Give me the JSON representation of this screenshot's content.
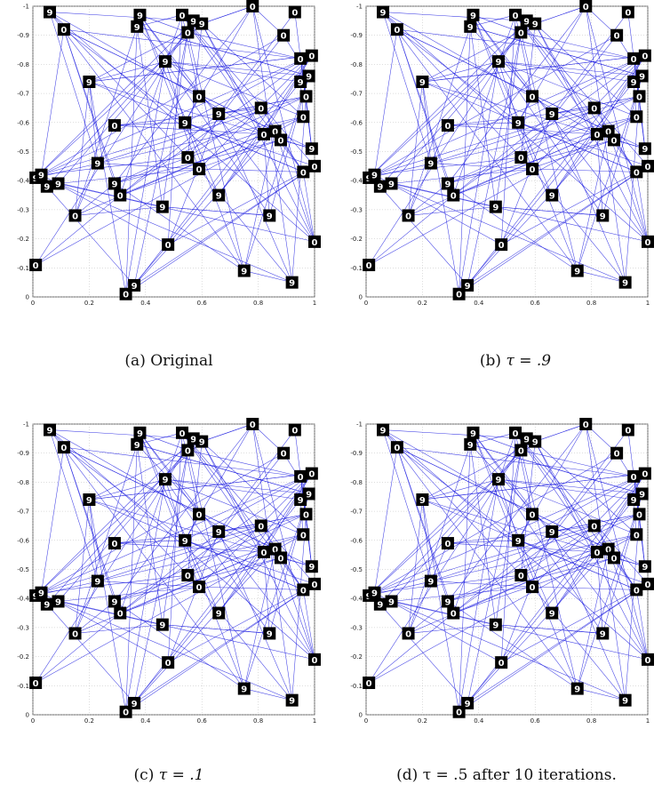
{
  "captions": [
    {
      "label": "(a)",
      "text": "Original"
    },
    {
      "label": "(b)",
      "text": "τ = .9"
    },
    {
      "label": "(c)",
      "text": "τ = .1"
    },
    {
      "label": "(d)",
      "text": "τ = .5 after 10 iterations."
    }
  ],
  "chart_data": [
    {
      "type": "scatter",
      "title": "",
      "xlim": [
        0,
        1
      ],
      "ylim": [
        -1,
        0
      ],
      "xticks": [
        "0",
        "0.2",
        "0.4",
        "0.6",
        "0.8",
        "1"
      ],
      "yticks": [
        "-1",
        "-0.9",
        "-0.8",
        "-0.7",
        "-0.6",
        "-0.5",
        "-0.4",
        "-0.3",
        "-0.2",
        "-0.1",
        "0"
      ],
      "grid": true,
      "edge_color": "#2020e0",
      "points": [
        {
          "x": 0.06,
          "y": -0.98,
          "digit": "9"
        },
        {
          "x": 0.11,
          "y": -0.92,
          "digit": "0"
        },
        {
          "x": 0.38,
          "y": -0.97,
          "digit": "9"
        },
        {
          "x": 0.37,
          "y": -0.93,
          "digit": "9"
        },
        {
          "x": 0.53,
          "y": -0.97,
          "digit": "0"
        },
        {
          "x": 0.57,
          "y": -0.95,
          "digit": "9"
        },
        {
          "x": 0.6,
          "y": -0.94,
          "digit": "9"
        },
        {
          "x": 0.55,
          "y": -0.91,
          "digit": "0"
        },
        {
          "x": 0.78,
          "y": -1.0,
          "digit": "0"
        },
        {
          "x": 0.93,
          "y": -0.98,
          "digit": "0"
        },
        {
          "x": 0.89,
          "y": -0.9,
          "digit": "0"
        },
        {
          "x": 0.47,
          "y": -0.81,
          "digit": "9"
        },
        {
          "x": 0.95,
          "y": -0.82,
          "digit": "0"
        },
        {
          "x": 0.99,
          "y": -0.83,
          "digit": "0"
        },
        {
          "x": 0.98,
          "y": -0.76,
          "digit": "9"
        },
        {
          "x": 0.95,
          "y": -0.74,
          "digit": "9"
        },
        {
          "x": 0.97,
          "y": -0.69,
          "digit": "0"
        },
        {
          "x": 0.2,
          "y": -0.74,
          "digit": "9"
        },
        {
          "x": 0.59,
          "y": -0.69,
          "digit": "0"
        },
        {
          "x": 0.81,
          "y": -0.65,
          "digit": "0"
        },
        {
          "x": 0.66,
          "y": -0.63,
          "digit": "9"
        },
        {
          "x": 0.29,
          "y": -0.59,
          "digit": "0"
        },
        {
          "x": 0.54,
          "y": -0.6,
          "digit": "9"
        },
        {
          "x": 0.96,
          "y": -0.62,
          "digit": "0"
        },
        {
          "x": 0.82,
          "y": -0.56,
          "digit": "0"
        },
        {
          "x": 0.86,
          "y": -0.57,
          "digit": "0"
        },
        {
          "x": 0.88,
          "y": -0.54,
          "digit": "0"
        },
        {
          "x": 0.99,
          "y": -0.51,
          "digit": "9"
        },
        {
          "x": 0.55,
          "y": -0.48,
          "digit": "0"
        },
        {
          "x": 0.59,
          "y": -0.44,
          "digit": "0"
        },
        {
          "x": 0.23,
          "y": -0.46,
          "digit": "9"
        },
        {
          "x": 1.0,
          "y": -0.45,
          "digit": "0"
        },
        {
          "x": 0.96,
          "y": -0.43,
          "digit": "0"
        },
        {
          "x": 0.01,
          "y": -0.41,
          "digit": "9"
        },
        {
          "x": 0.03,
          "y": -0.42,
          "digit": "9"
        },
        {
          "x": 0.05,
          "y": -0.38,
          "digit": "9"
        },
        {
          "x": 0.09,
          "y": -0.39,
          "digit": "9"
        },
        {
          "x": 0.29,
          "y": -0.39,
          "digit": "9"
        },
        {
          "x": 0.31,
          "y": -0.35,
          "digit": "0"
        },
        {
          "x": 0.46,
          "y": -0.31,
          "digit": "9"
        },
        {
          "x": 0.66,
          "y": -0.35,
          "digit": "9"
        },
        {
          "x": 0.15,
          "y": -0.28,
          "digit": "0"
        },
        {
          "x": 0.84,
          "y": -0.28,
          "digit": "9"
        },
        {
          "x": 1.0,
          "y": -0.19,
          "digit": "0"
        },
        {
          "x": 0.48,
          "y": -0.18,
          "digit": "0"
        },
        {
          "x": 0.01,
          "y": -0.11,
          "digit": "0"
        },
        {
          "x": 0.75,
          "y": -0.09,
          "digit": "9"
        },
        {
          "x": 0.92,
          "y": -0.05,
          "digit": "9"
        },
        {
          "x": 0.36,
          "y": -0.04,
          "digit": "9"
        },
        {
          "x": 0.33,
          "y": -0.01,
          "digit": "0"
        }
      ]
    }
  ]
}
